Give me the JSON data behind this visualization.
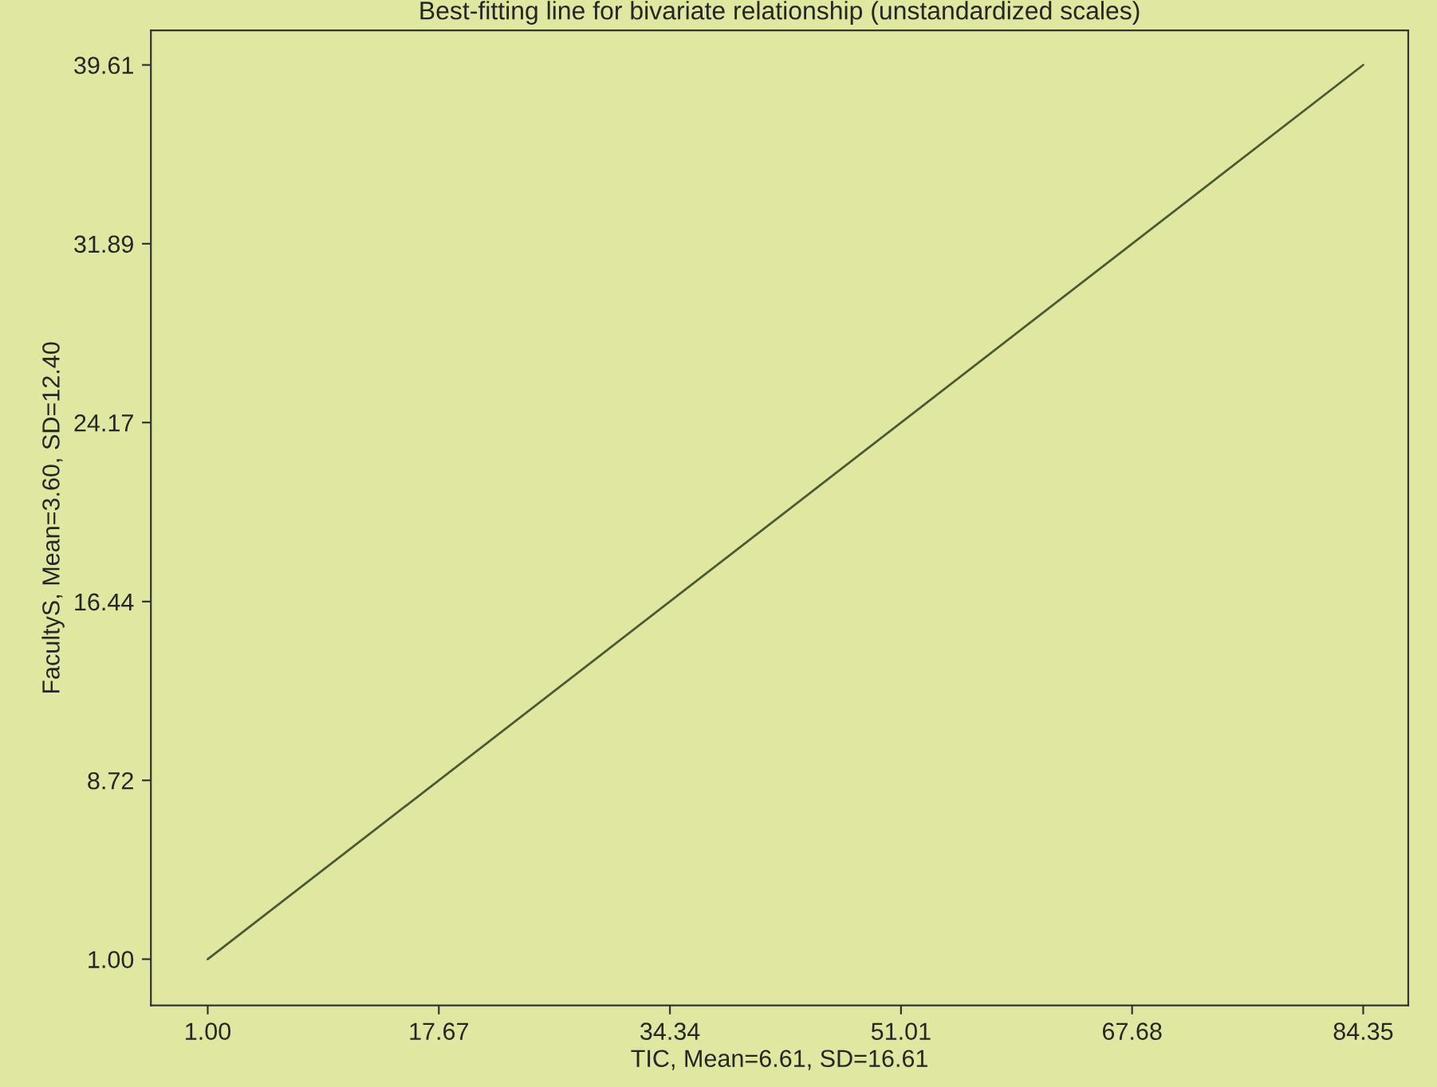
{
  "chart_data": {
    "type": "line",
    "title": "Best-fitting line for bivariate relationship (unstandardized scales)",
    "xlabel": "TIC, Mean=6.61, SD=16.61",
    "ylabel": "FacultyS, Mean=3.60, SD=12.40",
    "series": [
      {
        "color": "#4b5a32",
        "x": [
          1.0,
          84.35
        ],
        "values": [
          1.0,
          39.61
        ]
      }
    ],
    "xlim": [
      -3.1,
      87.6
    ],
    "ylim": [
      -1.0,
      41.1
    ],
    "xticks": [
      {
        "value": 1.0,
        "label": "1.00"
      },
      {
        "value": 17.67,
        "label": "17.67"
      },
      {
        "value": 34.34,
        "label": "34.34"
      },
      {
        "value": 51.01,
        "label": "51.01"
      },
      {
        "value": 67.68,
        "label": "67.68"
      },
      {
        "value": 84.35,
        "label": "84.35"
      }
    ],
    "yticks": [
      {
        "value": 1.0,
        "label": "1.00"
      },
      {
        "value": 8.72,
        "label": "8.72"
      },
      {
        "value": 16.44,
        "label": "16.44"
      },
      {
        "value": 24.17,
        "label": "24.17"
      },
      {
        "value": 31.89,
        "label": "31.89"
      },
      {
        "value": 39.61,
        "label": "39.61"
      }
    ],
    "grid": false,
    "legend": false,
    "marker": "none",
    "line_style": "solid"
  }
}
